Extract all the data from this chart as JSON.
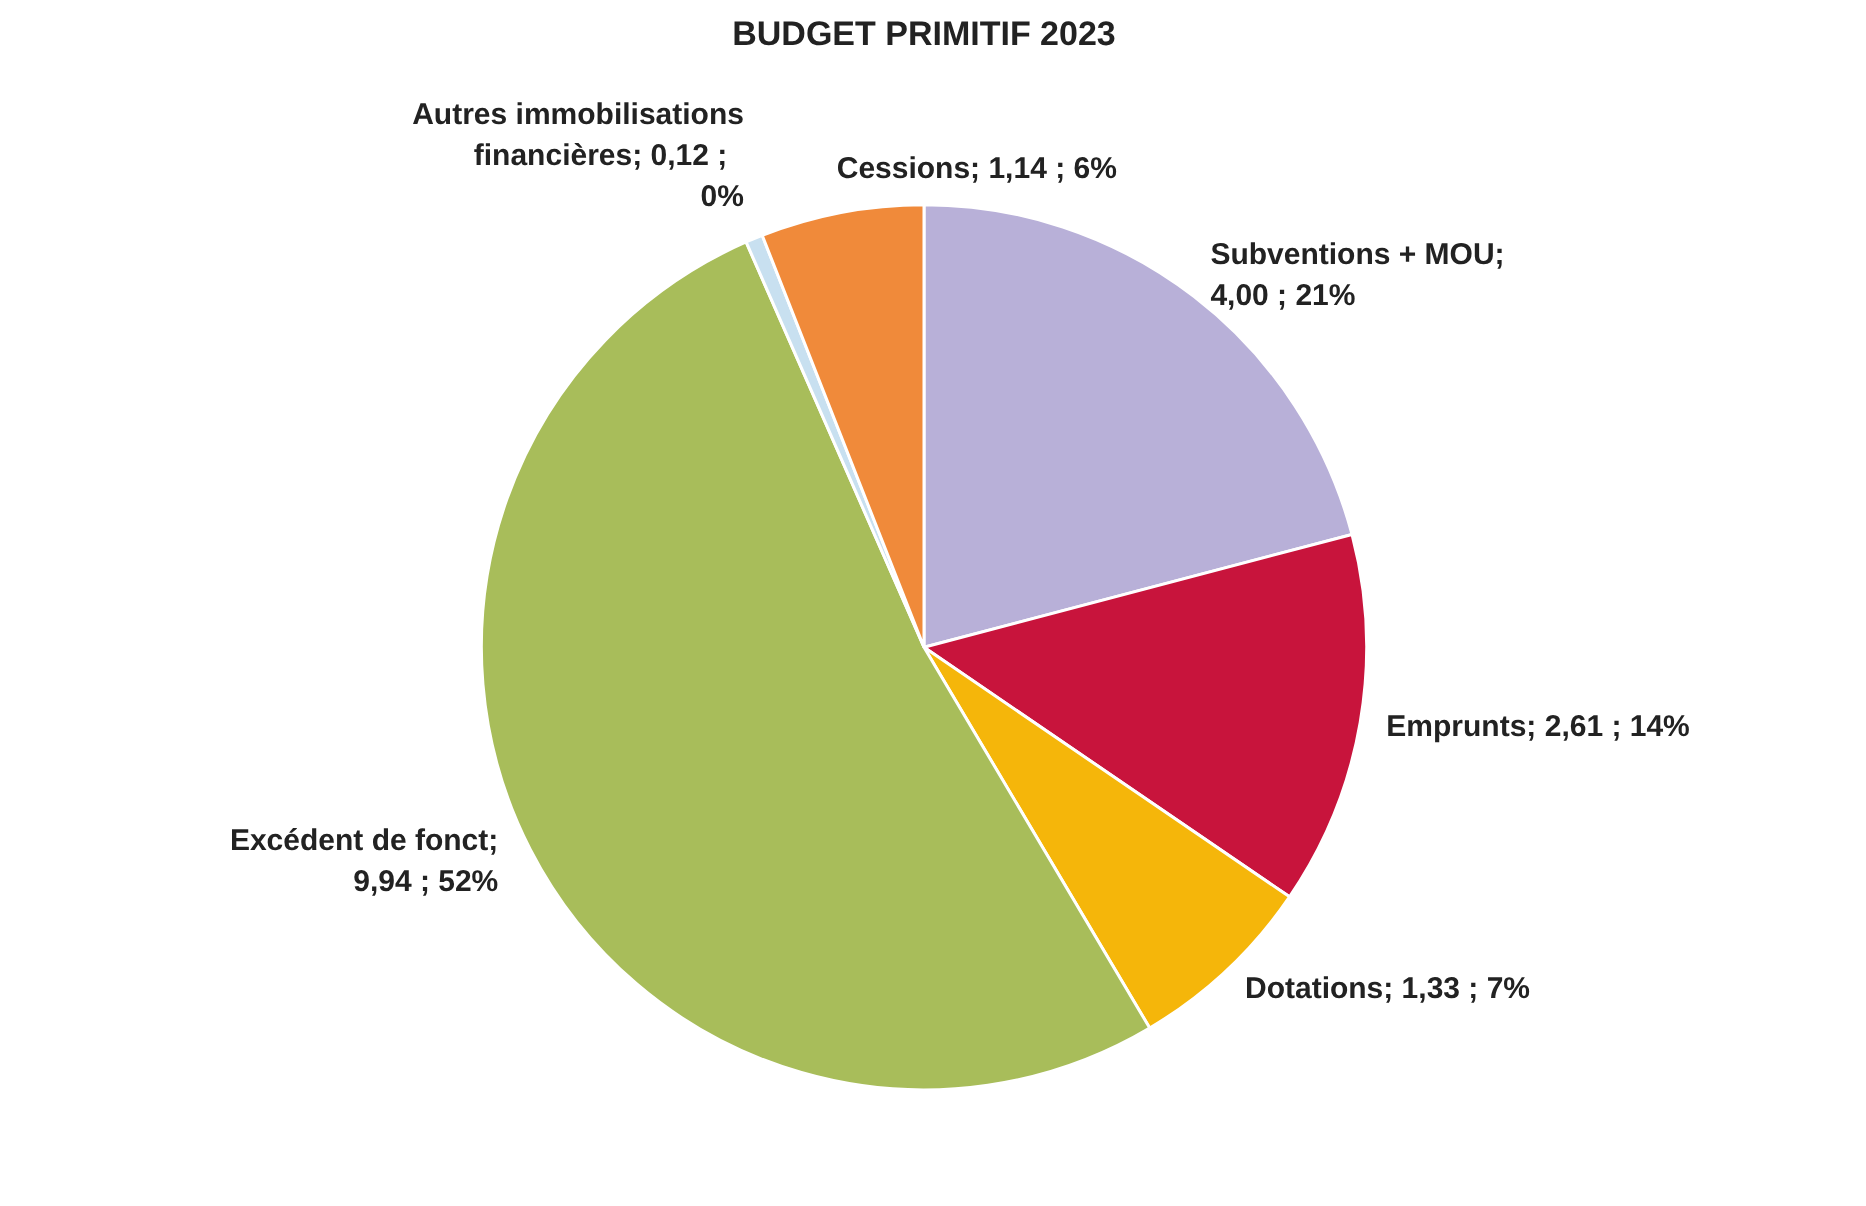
{
  "chart_data": {
    "type": "pie",
    "title": "BUDGET PRIMITIF 2023",
    "categories": [
      "Subventions + MOU",
      "Emprunts",
      "Dotations",
      "Excédent de fonct",
      "Autres immobilisations financières",
      "Cessions"
    ],
    "values": [
      4.0,
      2.61,
      1.33,
      9.94,
      0.12,
      1.14
    ],
    "value_labels": [
      ";  4,00  ; 21%",
      ";  2,61  ; 14%",
      ";  1,33  ; 7%",
      ";  9,94  ; 52%",
      ";  0,12  ; 0%",
      ";  1,14  ; 6%"
    ],
    "colors": [
      "#b8b0d8",
      "#c8143c",
      "#f5b60a",
      "#a8bd5a",
      "#c8e0f0",
      "#f08a3a"
    ]
  }
}
